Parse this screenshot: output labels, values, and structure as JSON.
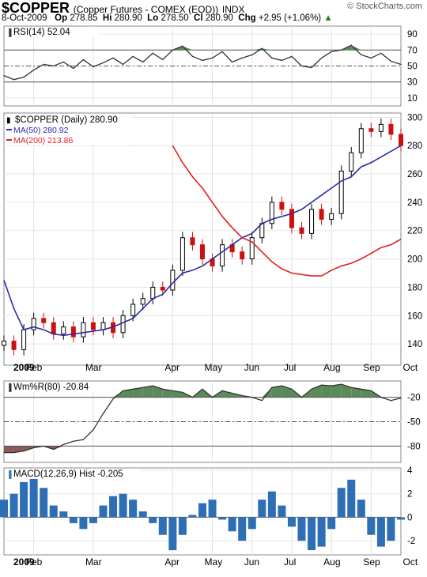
{
  "header": {
    "symbol": "$COPPER",
    "description": "(Copper Futures - COMEX (EOD))",
    "exchange": "INDX",
    "brand": "© StockCharts.com",
    "date": "8-Oct-2009",
    "op_label": "Op",
    "op": "278.85",
    "hi_label": "Hi",
    "hi": "280.90",
    "lo_label": "Lo",
    "lo": "278.50",
    "cl_label": "Cl",
    "cl": "280.90",
    "chg_label": "Chg",
    "chg": "+2.95 (+1.06%)",
    "chg_arrow": "▲",
    "accent_up": "#1a8a1a"
  },
  "months": [
    "2009",
    "Feb",
    "Mar",
    "Apr",
    "May",
    "Jun",
    "Jul",
    "Aug",
    "Sep",
    "Oct"
  ],
  "chart_data": [
    {
      "type": "line",
      "label": "RSI(14) 52.04",
      "y_ticks": [
        "90",
        "70",
        "50",
        "30",
        "10"
      ],
      "ylim": [
        0,
        100
      ],
      "levels": [
        70,
        50,
        30
      ],
      "x": [
        0,
        5,
        10,
        15,
        20,
        25,
        30,
        35,
        40,
        45,
        50,
        55,
        60,
        65,
        70,
        75,
        80,
        85,
        90,
        95,
        100,
        105,
        110,
        115,
        120,
        125,
        130,
        135,
        140,
        145,
        150,
        155,
        160,
        165,
        170,
        175,
        180,
        185,
        190,
        195,
        200
      ],
      "values": [
        38,
        33,
        36,
        45,
        52,
        50,
        55,
        47,
        58,
        49,
        54,
        60,
        52,
        62,
        55,
        66,
        58,
        70,
        75,
        62,
        57,
        60,
        68,
        55,
        60,
        64,
        72,
        60,
        57,
        62,
        50,
        48,
        60,
        68,
        70,
        76,
        64,
        60,
        66,
        56,
        52
      ],
      "fill_color": "#5a8a5a",
      "line_color": "#333333"
    },
    {
      "type": "candlestick",
      "label": "$COPPER (Daily) 280.90",
      "legend": [
        {
          "name": "MA(50) 280.92",
          "color": "#2a2aa8"
        },
        {
          "name": "MA(200) 213.86",
          "color": "#e02020"
        }
      ],
      "y_ticks": [
        "300",
        "280",
        "260",
        "240",
        "220",
        "200",
        "180",
        "160",
        "140"
      ],
      "ylim": [
        125,
        303
      ],
      "x": [
        0,
        5,
        10,
        15,
        20,
        25,
        30,
        35,
        40,
        45,
        50,
        55,
        60,
        65,
        70,
        75,
        80,
        85,
        90,
        95,
        100,
        105,
        110,
        115,
        120,
        125,
        130,
        135,
        140,
        145,
        150,
        155,
        160,
        165,
        170,
        175,
        180,
        185,
        190,
        195,
        200
      ],
      "close": [
        142,
        136,
        150,
        158,
        155,
        147,
        152,
        145,
        155,
        150,
        155,
        148,
        160,
        168,
        172,
        180,
        178,
        192,
        215,
        210,
        200,
        195,
        210,
        205,
        200,
        215,
        225,
        240,
        235,
        222,
        218,
        235,
        228,
        232,
        262,
        275,
        292,
        290,
        295,
        288,
        280
      ],
      "ma50": [
        185,
        165,
        150,
        152,
        150,
        147,
        146,
        147,
        148,
        149,
        150,
        152,
        155,
        158,
        165,
        172,
        175,
        183,
        190,
        192,
        195,
        200,
        205,
        210,
        215,
        218,
        225,
        228,
        230,
        232,
        235,
        240,
        245,
        250,
        255,
        258,
        265,
        268,
        272,
        276,
        280
      ],
      "ma200": [
        null,
        null,
        null,
        null,
        null,
        null,
        null,
        null,
        null,
        null,
        null,
        null,
        null,
        null,
        null,
        null,
        null,
        280,
        268,
        258,
        250,
        240,
        230,
        222,
        215,
        212,
        205,
        198,
        193,
        190,
        189,
        188,
        188,
        192,
        195,
        197,
        200,
        204,
        208,
        210,
        214
      ],
      "up_color": "#000000",
      "down_color": "#cc1010"
    },
    {
      "type": "area",
      "label": "Wm%R(80) -20.84",
      "y_ticks": [
        "-20",
        "-50",
        "-80"
      ],
      "ylim": [
        -100,
        0
      ],
      "levels": [
        -20,
        -50,
        -80
      ],
      "x": [
        0,
        5,
        10,
        15,
        20,
        25,
        30,
        35,
        40,
        45,
        50,
        55,
        60,
        65,
        70,
        75,
        80,
        85,
        90,
        95,
        100,
        105,
        110,
        115,
        120,
        125,
        130,
        135,
        140,
        145,
        150,
        155,
        160,
        165,
        170,
        175,
        180,
        185,
        190,
        195,
        200
      ],
      "values": [
        -88,
        -88,
        -86,
        -82,
        -80,
        -84,
        -78,
        -74,
        -72,
        -60,
        -40,
        -22,
        -12,
        -10,
        -8,
        -6,
        -10,
        -12,
        -14,
        -20,
        -10,
        -20,
        -12,
        -15,
        -18,
        -20,
        -24,
        -8,
        -6,
        -10,
        -20,
        -10,
        -5,
        -6,
        -4,
        -8,
        -10,
        -12,
        -20,
        -24,
        -21
      ],
      "above_color": "#5a8a5a",
      "below_color": "#8a5a5a"
    },
    {
      "type": "bar",
      "label": "MACD(12,26,9) Hist -0.205",
      "y_ticks": [
        "4",
        "2",
        "0",
        "-2"
      ],
      "ylim": [
        -3.2,
        4.2
      ],
      "x": [
        0,
        5,
        10,
        15,
        20,
        25,
        30,
        35,
        40,
        45,
        50,
        55,
        60,
        65,
        70,
        75,
        80,
        85,
        90,
        95,
        100,
        105,
        110,
        115,
        120,
        125,
        130,
        135,
        140,
        145,
        150,
        155,
        160,
        165,
        170,
        175,
        180,
        185,
        190,
        195,
        200
      ],
      "values": [
        1.5,
        2,
        3,
        3.8,
        2.5,
        1,
        0.5,
        -0.5,
        -1,
        -0.5,
        1,
        1.8,
        2,
        1.5,
        0.5,
        -0.5,
        -1.5,
        -2.8,
        -1.5,
        0.2,
        1.2,
        1.5,
        -0.2,
        -1.2,
        -2,
        -1,
        1.5,
        2.2,
        1,
        -0.8,
        -2,
        -2.8,
        -2.5,
        -1,
        2.5,
        3.2,
        1.5,
        -1.5,
        -2.5,
        -2,
        -0.2
      ],
      "bar_color": "#2e6eb4"
    }
  ]
}
